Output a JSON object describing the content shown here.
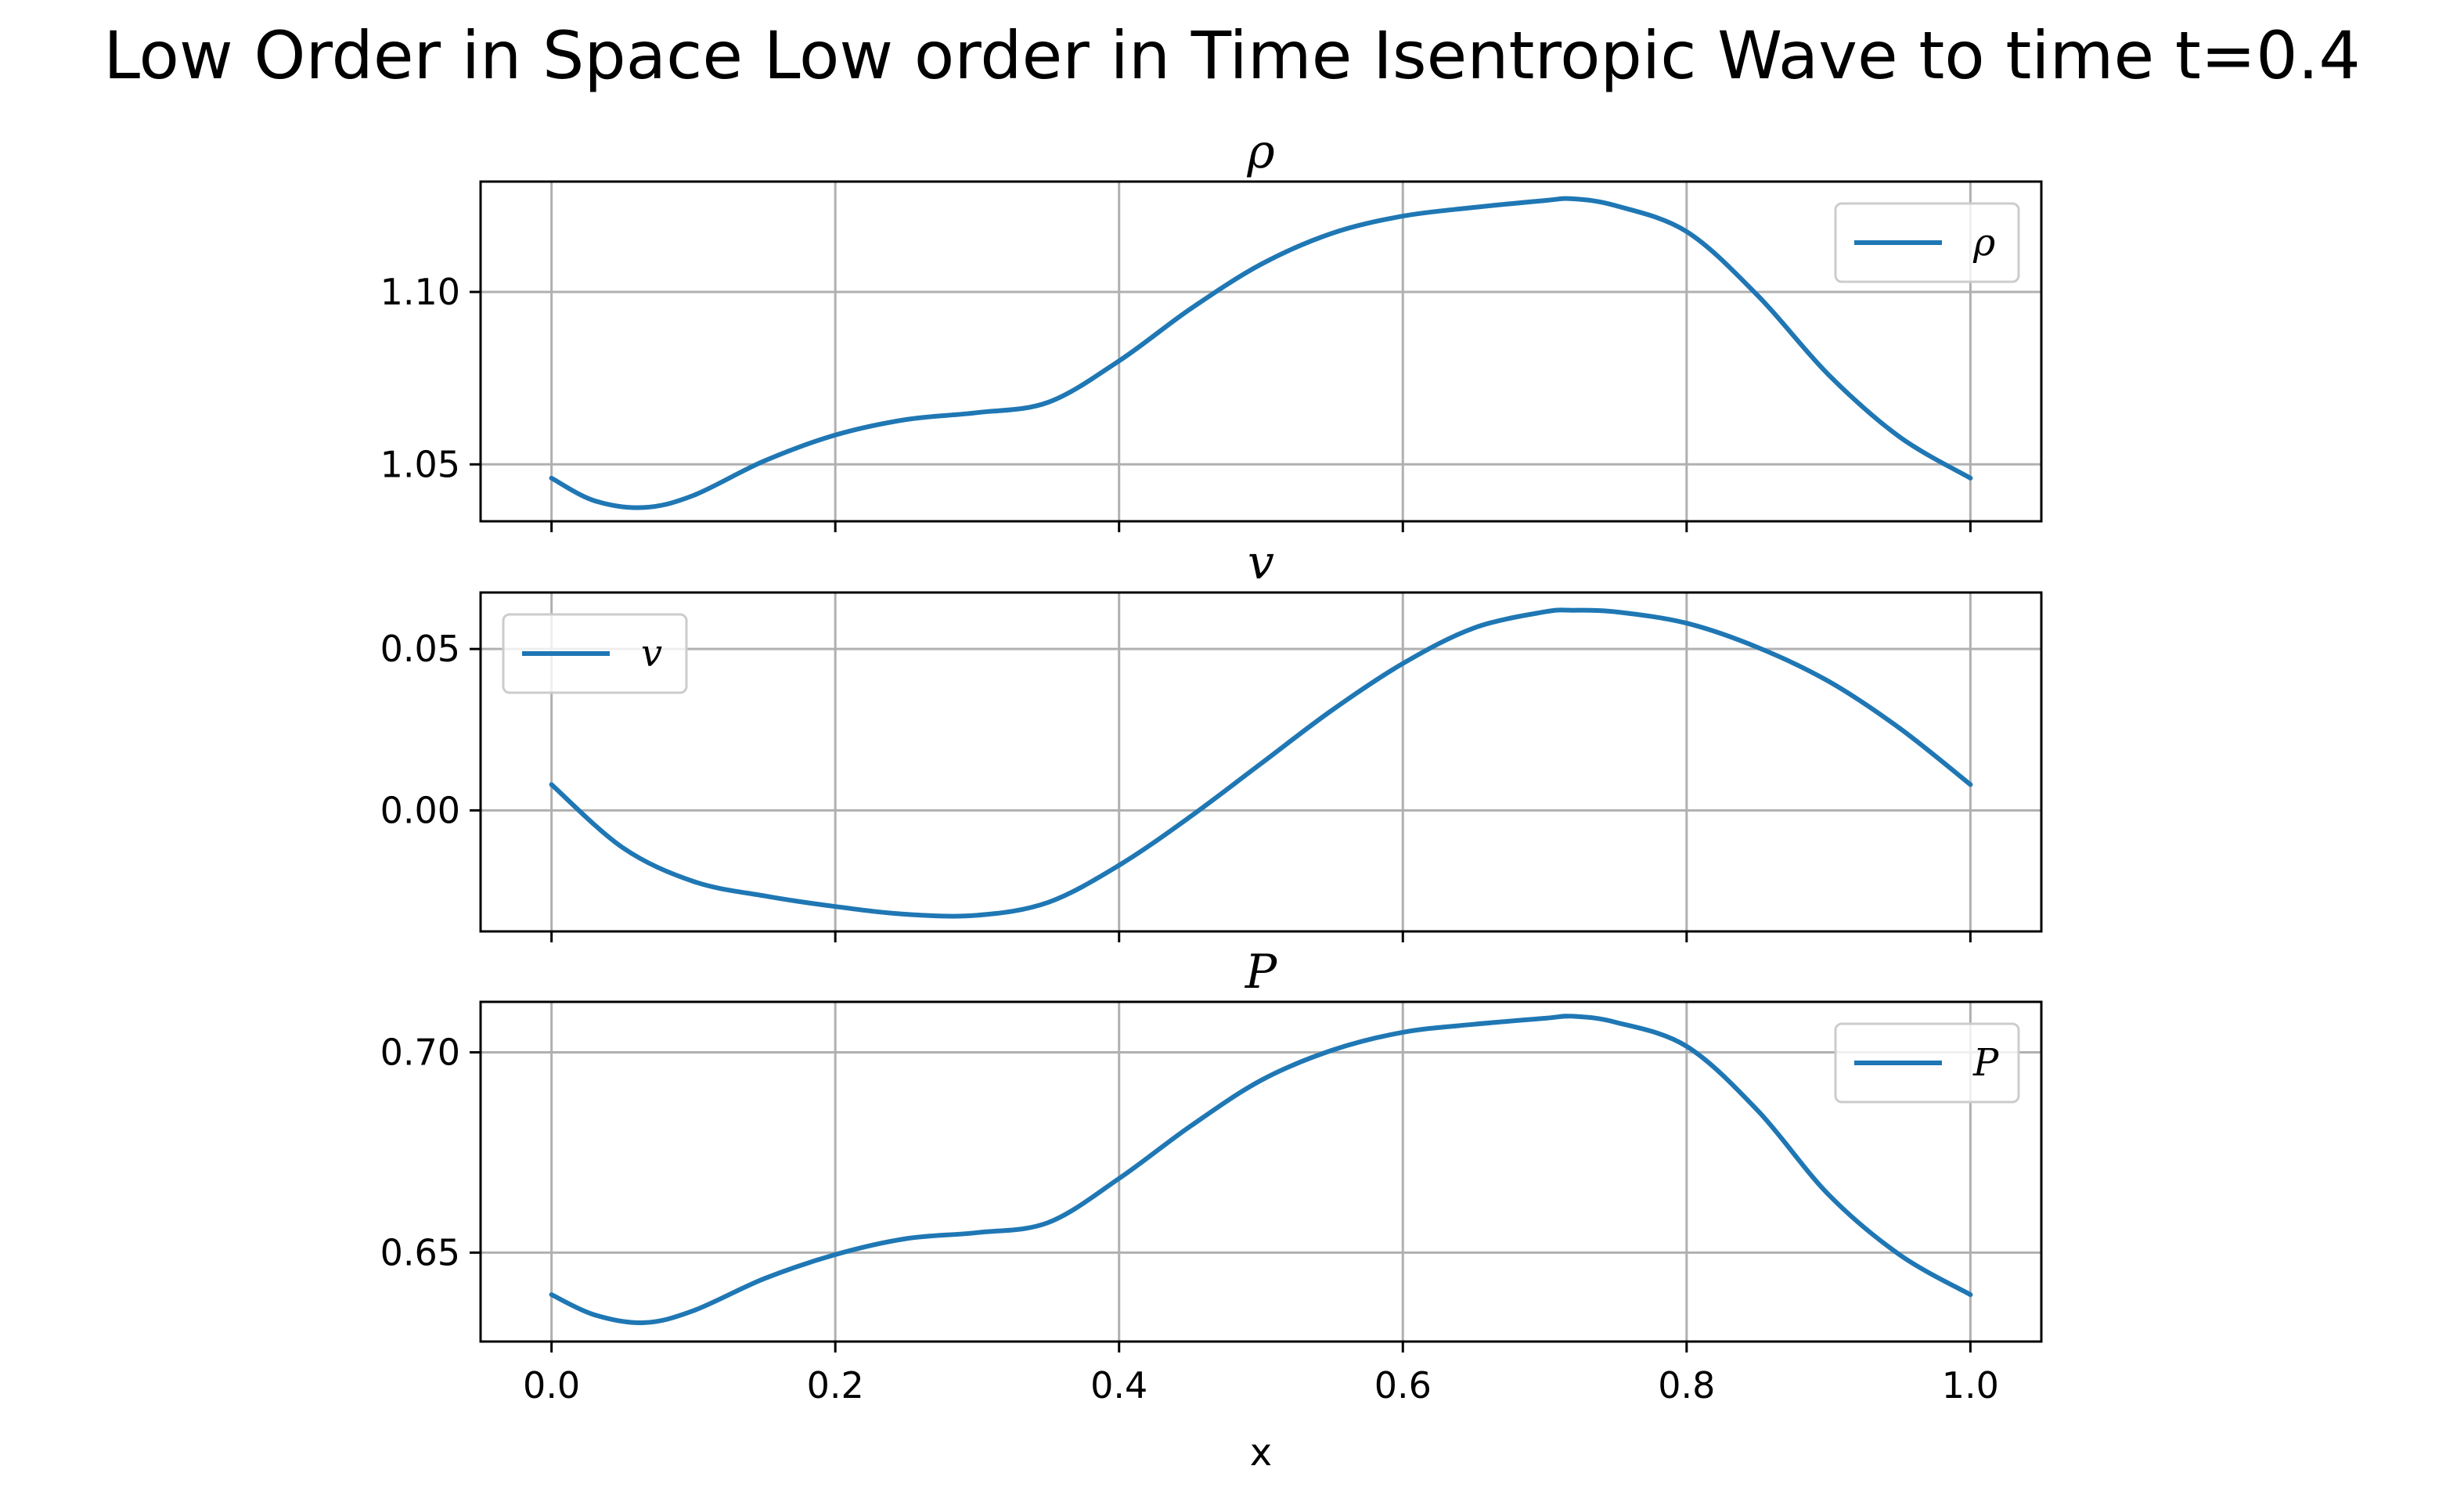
{
  "chart_data": {
    "title": "Low Order in Space Low order in Time Isentropic Wave to time t=0.4",
    "xlabel": "x",
    "xlim": [
      -0.05,
      1.05
    ],
    "xticks": [
      0.0,
      0.2,
      0.4,
      0.6,
      0.8,
      1.0
    ],
    "xtick_labels": [
      "0.0",
      "0.2",
      "0.4",
      "0.6",
      "0.8",
      "1.0"
    ],
    "grid": true,
    "subplots": [
      {
        "type": "line",
        "title": "ρ",
        "ylim": [
          1.0335,
          1.132
        ],
        "yticks": [
          1.05,
          1.1
        ],
        "ytick_labels": [
          "1.05",
          "1.10"
        ],
        "legend": "upper right",
        "series": [
          {
            "name": "ρ",
            "color": "#1f77b4",
            "x": [
              0.0,
              0.03,
              0.065,
              0.1,
              0.15,
              0.2,
              0.25,
              0.3,
              0.35,
              0.4,
              0.45,
              0.5,
              0.55,
              0.6,
              0.65,
              0.7,
              0.72,
              0.75,
              0.8,
              0.85,
              0.9,
              0.95,
              1.0
            ],
            "y": [
              1.046,
              1.0395,
              1.0375,
              1.041,
              1.051,
              1.0585,
              1.063,
              1.065,
              1.068,
              1.08,
              1.095,
              1.108,
              1.117,
              1.122,
              1.1245,
              1.1265,
              1.127,
              1.125,
              1.1175,
              1.099,
              1.076,
              1.058,
              1.046
            ]
          }
        ]
      },
      {
        "type": "line",
        "title": "v",
        "ylim": [
          -0.0375,
          0.0675
        ],
        "yticks": [
          0.0,
          0.05
        ],
        "ytick_labels": [
          "0.00",
          "0.05"
        ],
        "legend": "upper left",
        "series": [
          {
            "name": "v",
            "color": "#1f77b4",
            "x": [
              0.0,
              0.05,
              0.1,
              0.15,
              0.2,
              0.25,
              0.3,
              0.35,
              0.4,
              0.45,
              0.5,
              0.55,
              0.6,
              0.65,
              0.7,
              0.72,
              0.75,
              0.8,
              0.85,
              0.9,
              0.95,
              1.0
            ],
            "y": [
              0.008,
              -0.0115,
              -0.022,
              -0.0265,
              -0.0298,
              -0.0322,
              -0.0325,
              -0.0285,
              -0.017,
              -0.002,
              0.0145,
              0.031,
              0.0455,
              0.0565,
              0.0615,
              0.062,
              0.0615,
              0.058,
              0.0505,
              0.04,
              0.0255,
              0.008
            ]
          }
        ]
      },
      {
        "type": "line",
        "title": "P",
        "ylim": [
          0.6278,
          0.7126
        ],
        "yticks": [
          0.65,
          0.7
        ],
        "ytick_labels": [
          "0.65",
          "0.70"
        ],
        "legend": "upper right",
        "series": [
          {
            "name": "P",
            "color": "#1f77b4",
            "x": [
              0.0,
              0.03,
              0.065,
              0.1,
              0.15,
              0.2,
              0.25,
              0.3,
              0.35,
              0.4,
              0.45,
              0.5,
              0.55,
              0.6,
              0.65,
              0.7,
              0.72,
              0.75,
              0.8,
              0.85,
              0.9,
              0.95,
              1.0
            ],
            "y": [
              0.6395,
              0.6345,
              0.6325,
              0.6355,
              0.6435,
              0.6495,
              0.6535,
              0.655,
              0.6575,
              0.6685,
              0.6815,
              0.693,
              0.7005,
              0.705,
              0.707,
              0.7085,
              0.709,
              0.7075,
              0.7015,
              0.6855,
              0.6645,
              0.6495,
              0.6395
            ]
          }
        ]
      }
    ]
  }
}
